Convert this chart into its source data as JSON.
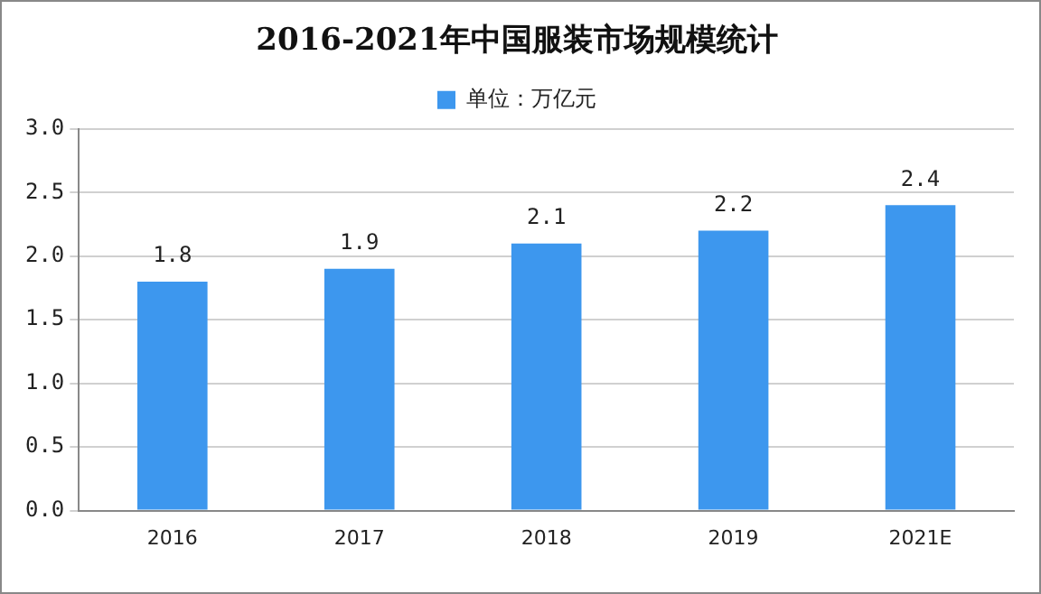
{
  "chart_data": {
    "type": "bar",
    "title": "2016-2021年中国服装市场规模统计",
    "categories": [
      "2016",
      "2017",
      "2018",
      "2019",
      "2021E"
    ],
    "series": [
      {
        "name": "单位：万亿元",
        "color": "#3d97ee",
        "values": [
          1.8,
          1.9,
          2.1,
          2.2,
          2.4
        ]
      }
    ],
    "ylim": [
      0,
      3
    ],
    "yticks": [
      {
        "value": 0,
        "label": "0.0"
      },
      0.5,
      {
        "value": 1,
        "label": "1.0"
      },
      1.5,
      {
        "value": 2,
        "label": "2.0"
      },
      2.5,
      {
        "value": 3,
        "label": "3.0"
      }
    ],
    "grid": "y",
    "legend": "top",
    "data_labels": true
  }
}
